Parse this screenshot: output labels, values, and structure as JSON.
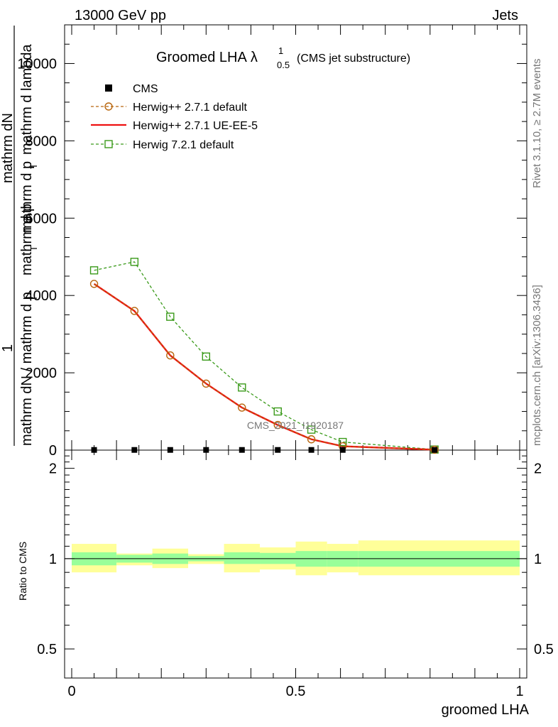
{
  "header": {
    "energy": "13000 GeV pp",
    "tag": "Jets",
    "title_main": "Groomed LHA",
    "title_lambda": "λ",
    "title_sup": "1",
    "title_sub": "0.5",
    "title_note": "(CMS jet substructure)",
    "watermark": "CMS_2021_I1920187",
    "right_label_top": "Rivet 3.1.10, ≥ 2.7M events",
    "right_label_bottom": "mcplots.cern.ch [arXiv:1306.3436]"
  },
  "yaxis_label": {
    "numer_top": "1",
    "numer_left": "mathrm dN / mathrm d p",
    "numer_left_sub": "T",
    "denom_right": "mathrm d p",
    "denom_right_sub": "T",
    "numer_right": "mathrm dN",
    "denom_right_tail": "mathrm d lambda",
    "extra": "mathrm d p"
  },
  "chart_data": [
    {
      "panel": "main",
      "type": "line",
      "xlim": [
        0,
        1
      ],
      "ylim": [
        0,
        11000
      ],
      "ylabel": "1 / (mathrm dN / mathrm d p_T) · mathrm d^2N / (mathrm d p_T mathrm d lambda)",
      "yticks": [
        0,
        2000,
        4000,
        6000,
        8000,
        10000
      ],
      "ytick_labels": [
        "0",
        "2000",
        "4000",
        "6000",
        "8000",
        "10000"
      ],
      "legend_position": "top-left",
      "series": [
        {
          "name": "CMS",
          "style": "markers",
          "color": "#000000",
          "x": [
            0.05,
            0.14,
            0.22,
            0.3,
            0.38,
            0.46,
            0.535,
            0.605,
            0.81
          ],
          "y": [
            5,
            5,
            5,
            5,
            5,
            5,
            5,
            5,
            5
          ]
        },
        {
          "name": "Herwig++ 2.7.1 default",
          "style": "dashed-circle",
          "color": "#b8660d",
          "x": [
            0.05,
            0.14,
            0.22,
            0.3,
            0.38,
            0.46,
            0.535,
            0.605,
            0.81
          ],
          "y": [
            4300,
            3600,
            2450,
            1720,
            1100,
            650,
            280,
            100,
            10
          ]
        },
        {
          "name": "Herwig++ 2.7.1 UE-EE-5",
          "style": "solid",
          "color": "#ee1111",
          "x": [
            0.05,
            0.14,
            0.22,
            0.3,
            0.38,
            0.46,
            0.535,
            0.605,
            0.81
          ],
          "y": [
            4300,
            3600,
            2450,
            1720,
            1100,
            650,
            280,
            100,
            10
          ]
        },
        {
          "name": "Herwig 7.2.1 default",
          "style": "dashed-square",
          "color": "#3a9a1a",
          "x": [
            0.05,
            0.14,
            0.22,
            0.3,
            0.38,
            0.46,
            0.535,
            0.605,
            0.81
          ],
          "y": [
            4650,
            4870,
            3450,
            2420,
            1620,
            1000,
            530,
            210,
            15
          ]
        }
      ]
    },
    {
      "panel": "ratio",
      "type": "area",
      "xlabel": "groomed LHA",
      "ylabel": "Ratio to CMS",
      "xlim": [
        0,
        1
      ],
      "ylim": [
        0.4,
        2.3
      ],
      "log_y": true,
      "xticks": [
        0,
        0.5,
        1
      ],
      "xtick_labels": [
        "0",
        "0.5",
        "1"
      ],
      "yticks": [
        0.5,
        1,
        2
      ],
      "ytick_labels": [
        "0.5",
        "1",
        "2"
      ],
      "bins": [
        {
          "x0": 0.0,
          "x1": 0.1,
          "stat_lo": 0.95,
          "stat_hi": 1.05,
          "tot_lo": 0.9,
          "tot_hi": 1.12
        },
        {
          "x0": 0.1,
          "x1": 0.18,
          "stat_lo": 0.97,
          "stat_hi": 1.03,
          "tot_lo": 0.95,
          "tot_hi": 1.04
        },
        {
          "x0": 0.18,
          "x1": 0.26,
          "stat_lo": 0.96,
          "stat_hi": 1.04,
          "tot_lo": 0.93,
          "tot_hi": 1.08
        },
        {
          "x0": 0.26,
          "x1": 0.34,
          "stat_lo": 0.98,
          "stat_hi": 1.02,
          "tot_lo": 0.96,
          "tot_hi": 1.035
        },
        {
          "x0": 0.34,
          "x1": 0.42,
          "stat_lo": 0.96,
          "stat_hi": 1.05,
          "tot_lo": 0.9,
          "tot_hi": 1.12
        },
        {
          "x0": 0.42,
          "x1": 0.5,
          "stat_lo": 0.96,
          "stat_hi": 1.045,
          "tot_lo": 0.92,
          "tot_hi": 1.09
        },
        {
          "x0": 0.5,
          "x1": 0.57,
          "stat_lo": 0.94,
          "stat_hi": 1.06,
          "tot_lo": 0.88,
          "tot_hi": 1.14
        },
        {
          "x0": 0.57,
          "x1": 0.64,
          "stat_lo": 0.94,
          "stat_hi": 1.06,
          "tot_lo": 0.9,
          "tot_hi": 1.12
        },
        {
          "x0": 0.64,
          "x1": 1.0,
          "stat_lo": 0.94,
          "stat_hi": 1.06,
          "tot_lo": 0.88,
          "tot_hi": 1.15
        }
      ],
      "colors": {
        "stat": "#99ff99",
        "total": "#ffff99"
      }
    }
  ]
}
